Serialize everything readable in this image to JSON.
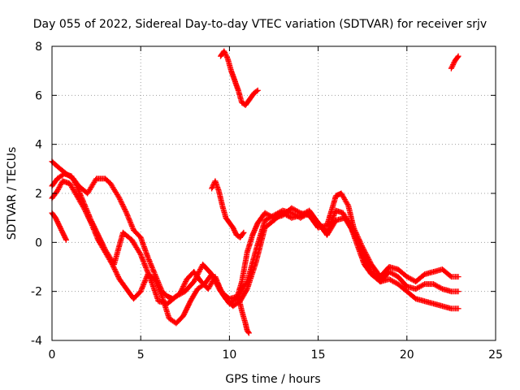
{
  "chart_data": {
    "type": "scatter",
    "title": "Day 055 of 2022, Sidereal Day-to-day VTEC variation (SDTVAR) for receiver srjv",
    "xlabel": "GPS time / hours",
    "ylabel": "SDTVAR / TECUs",
    "xlim": [
      0,
      25
    ],
    "ylim": [
      -4,
      8
    ],
    "xticks": [
      0,
      5,
      10,
      15,
      20,
      25
    ],
    "yticks": [
      -4,
      -2,
      0,
      2,
      4,
      6,
      8
    ],
    "xtick_labels": [
      "0",
      "5",
      "10",
      "15",
      "20",
      "25"
    ],
    "ytick_labels": [
      "-4",
      "-2",
      "0",
      "2",
      "4",
      "6",
      "8"
    ],
    "grid": true,
    "marker": "+",
    "series": [
      {
        "name": "track-1",
        "x": [
          0.0,
          0.3,
          0.8,
          1.2,
          1.5,
          2.0,
          2.5,
          3.0,
          3.3,
          3.8,
          4.2,
          4.6,
          5.0,
          5.4,
          5.8,
          6.2,
          6.5,
          6.8,
          7.2,
          7.6,
          8.0,
          8.4,
          8.8,
          9.2,
          9.6,
          10.0,
          10.4,
          10.7,
          11.0,
          11.3,
          11.6,
          12.0,
          12.5,
          13.0,
          13.5,
          14.0,
          14.5,
          15.0,
          15.5,
          16.0,
          16.3,
          16.7,
          17.0,
          17.5,
          18.0,
          18.5,
          19.0,
          19.5,
          20.0,
          20.5,
          21.0,
          21.5,
          22.0,
          22.5,
          22.9
        ],
        "y": [
          3.3,
          3.1,
          2.8,
          2.6,
          2.3,
          2.0,
          2.6,
          2.6,
          2.4,
          1.8,
          1.2,
          0.5,
          0.2,
          -0.6,
          -1.3,
          -2.0,
          -2.2,
          -2.3,
          -2.1,
          -1.5,
          -1.2,
          -1.6,
          -1.9,
          -1.4,
          -2.1,
          -2.5,
          -2.3,
          -1.6,
          -0.4,
          0.3,
          0.8,
          1.2,
          1.0,
          1.1,
          1.4,
          1.2,
          1.1,
          0.6,
          0.7,
          1.9,
          2.0,
          1.5,
          0.6,
          -0.2,
          -0.9,
          -1.4,
          -1.0,
          -1.1,
          -1.4,
          -1.6,
          -1.3,
          -1.2,
          -1.1,
          -1.4,
          -1.4
        ]
      },
      {
        "name": "track-2",
        "x": [
          0.0,
          0.3,
          0.7,
          1.1,
          1.4,
          1.8,
          2.2,
          2.6,
          3.0,
          3.5,
          4.0,
          4.5,
          5.0,
          5.5,
          6.0,
          6.5,
          7.0,
          7.5,
          8.0,
          8.5,
          9.0,
          9.5,
          10.0,
          10.5,
          11.0,
          11.5,
          12.0,
          12.5,
          13.0,
          13.5,
          14.0,
          14.5,
          15.0,
          15.5,
          16.0,
          16.4,
          16.8,
          17.2,
          17.6,
          18.0,
          18.5,
          19.0,
          19.5,
          20.0,
          20.5,
          21.0,
          21.5,
          22.0,
          22.5,
          22.9
        ],
        "y": [
          2.3,
          2.6,
          2.8,
          2.7,
          2.3,
          1.6,
          0.9,
          0.3,
          -0.3,
          -0.9,
          0.4,
          0.1,
          -0.5,
          -1.4,
          -2.4,
          -2.5,
          -2.2,
          -2.0,
          -1.6,
          -0.9,
          -1.3,
          -2.0,
          -2.3,
          -2.2,
          -1.6,
          -0.3,
          0.9,
          1.1,
          1.3,
          1.2,
          1.0,
          1.2,
          0.8,
          0.4,
          1.3,
          1.2,
          0.7,
          -0.1,
          -0.9,
          -1.3,
          -1.6,
          -1.2,
          -1.4,
          -1.8,
          -1.9,
          -1.7,
          -1.7,
          -1.9,
          -2.0,
          -2.0
        ]
      },
      {
        "name": "track-3",
        "x": [
          0.0,
          0.3,
          0.6,
          1.0,
          1.4,
          1.8,
          2.2,
          2.6,
          3.0,
          3.4,
          3.8,
          4.2,
          4.6,
          5.0,
          5.4,
          5.8,
          6.2,
          6.6,
          7.0,
          7.4,
          7.8,
          8.2,
          8.6,
          9.0,
          9.4,
          9.8,
          10.2,
          10.6,
          11.0,
          11.5,
          12.0,
          12.5,
          13.0,
          13.5,
          14.0,
          14.5,
          15.0,
          15.5,
          16.0,
          16.5,
          17.0,
          17.5,
          18.0,
          18.5,
          19.0,
          19.5,
          20.0,
          20.5,
          21.0,
          21.5,
          22.0,
          22.5,
          22.9
        ],
        "y": [
          1.8,
          2.1,
          2.5,
          2.4,
          1.9,
          1.4,
          0.8,
          0.1,
          -0.4,
          -0.9,
          -1.5,
          -1.9,
          -2.3,
          -2.0,
          -1.3,
          -1.5,
          -2.2,
          -3.1,
          -3.3,
          -3.0,
          -2.4,
          -1.9,
          -1.7,
          -1.3,
          -1.8,
          -2.3,
          -2.6,
          -2.4,
          -1.9,
          -0.8,
          0.6,
          0.9,
          1.2,
          1.0,
          1.1,
          1.3,
          0.8,
          0.3,
          0.9,
          1.0,
          0.4,
          -0.4,
          -1.2,
          -1.6,
          -1.5,
          -1.7,
          -2.0,
          -2.3,
          -2.4,
          -2.5,
          -2.6,
          -2.7,
          -2.7
        ]
      },
      {
        "name": "track-4",
        "x": [
          0.0,
          0.2,
          0.4,
          0.6,
          0.8
        ],
        "y": [
          1.2,
          1.0,
          0.7,
          0.4,
          0.1
        ]
      },
      {
        "name": "track-5",
        "x": [
          9.5,
          9.7,
          9.9,
          10.1,
          10.3,
          10.5,
          10.7,
          10.9,
          11.0,
          11.2,
          11.4,
          11.6
        ],
        "y": [
          7.6,
          7.8,
          7.5,
          7.0,
          6.6,
          6.2,
          5.7,
          5.6,
          5.7,
          5.9,
          6.1,
          6.2
        ]
      },
      {
        "name": "track-6",
        "x": [
          9.0,
          9.2,
          9.4,
          9.6,
          9.8,
          10.0,
          10.2,
          10.4,
          10.6,
          10.8
        ],
        "y": [
          2.2,
          2.5,
          2.1,
          1.5,
          1.0,
          0.8,
          0.6,
          0.3,
          0.2,
          0.4
        ]
      },
      {
        "name": "track-7",
        "x": [
          10.5,
          10.7,
          10.9,
          11.0,
          11.1
        ],
        "y": [
          -2.2,
          -2.8,
          -3.3,
          -3.6,
          -3.7
        ]
      },
      {
        "name": "track-8",
        "x": [
          22.5,
          22.7,
          22.9
        ],
        "y": [
          7.1,
          7.4,
          7.6
        ]
      }
    ]
  },
  "style": {
    "marker_color": "#ff0000",
    "grid_color": "#a0a0a0",
    "axis_color": "#000000"
  }
}
